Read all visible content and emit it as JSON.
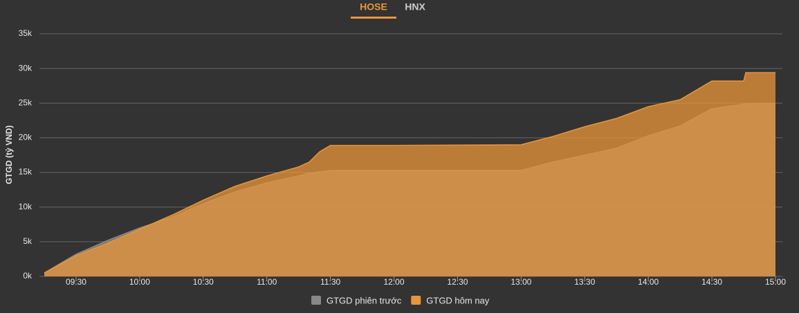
{
  "tabs": [
    "HOSE",
    "HNX"
  ],
  "chart_data": {
    "type": "area",
    "y_label": "GTGD (tỷ VND)",
    "x": [
      "09:15",
      "09:30",
      "09:45",
      "10:00",
      "10:15",
      "10:30",
      "10:45",
      "11:00",
      "11:15",
      "11:20",
      "11:25",
      "11:30",
      "12:00",
      "12:30",
      "13:00",
      "13:15",
      "13:30",
      "13:45",
      "14:00",
      "14:15",
      "14:30",
      "14:45",
      "14:46",
      "15:00"
    ],
    "xlim": [
      "09:15",
      "15:00"
    ],
    "xticks": [
      "09:30",
      "10:00",
      "10:30",
      "11:00",
      "11:30",
      "12:00",
      "12:30",
      "13:00",
      "13:30",
      "14:00",
      "14:30",
      "15:00"
    ],
    "ylim": [
      0,
      35000
    ],
    "yticks": [
      {
        "value": 0,
        "label": "0k"
      },
      {
        "value": 5000,
        "label": "5k"
      },
      {
        "value": 10000,
        "label": "10k"
      },
      {
        "value": 15000,
        "label": "15k"
      },
      {
        "value": 20000,
        "label": "20k"
      },
      {
        "value": 25000,
        "label": "25k"
      },
      {
        "value": 30000,
        "label": "30k"
      },
      {
        "value": 35000,
        "label": "35k"
      }
    ],
    "grid": true,
    "legend": "bottom",
    "series": [
      {
        "name": "GTGD phiên trước",
        "color": "#888888",
        "values": [
          500,
          3200,
          5200,
          7000,
          8500,
          10500,
          12200,
          13500,
          14500,
          14900,
          15100,
          15300,
          15300,
          15300,
          15300,
          16500,
          17500,
          18500,
          20300,
          21700,
          24200,
          24850,
          24900,
          25000
        ]
      },
      {
        "name": "GTGD hôm nay",
        "color": "#e8963a",
        "values": [
          500,
          3000,
          4800,
          6800,
          8800,
          11000,
          13000,
          14500,
          15800,
          16500,
          18000,
          18900,
          18900,
          18950,
          19000,
          20200,
          21600,
          22800,
          24500,
          25500,
          28200,
          28200,
          29400,
          29400
        ]
      }
    ]
  }
}
